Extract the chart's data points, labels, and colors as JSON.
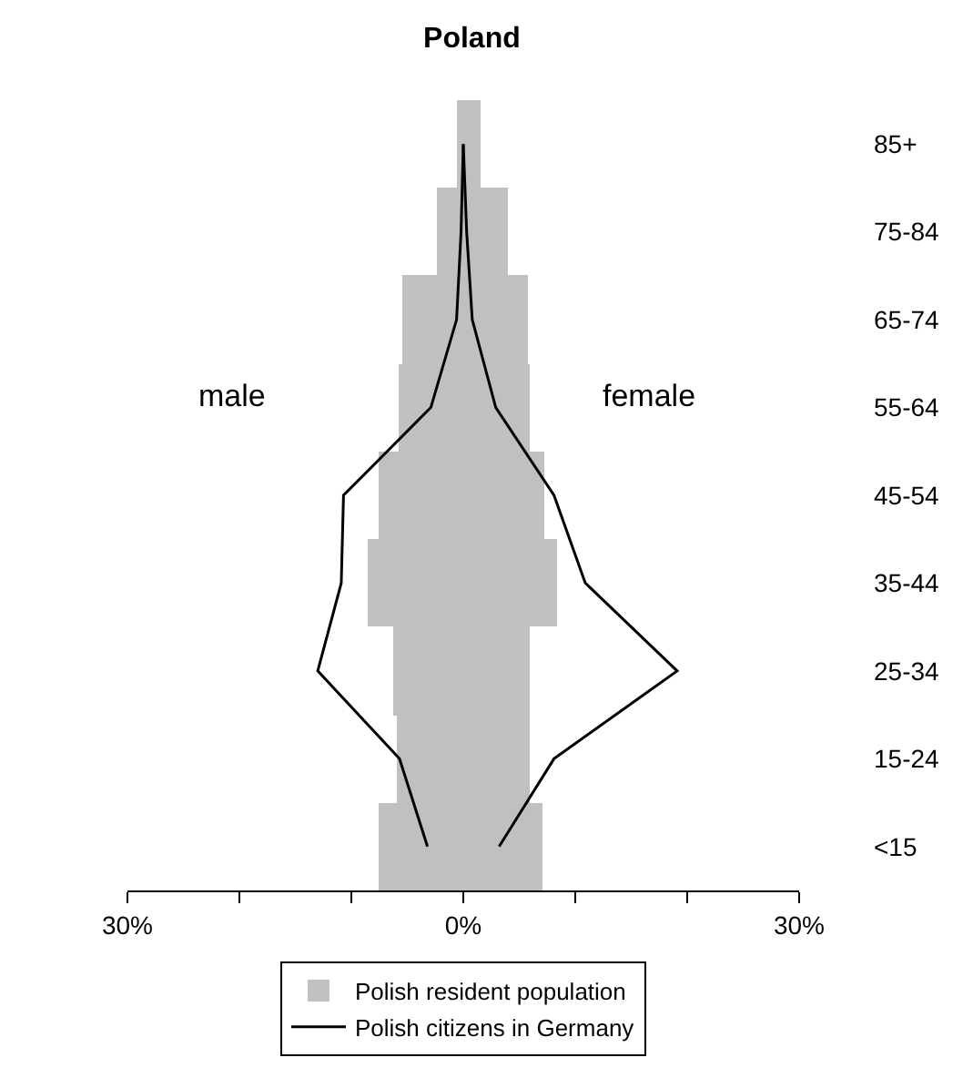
{
  "chart_data": {
    "type": "bar",
    "title": "Poland",
    "orientation": "horizontal",
    "stacked": true,
    "categories": [
      "85+",
      "75-84",
      "65-74",
      "55-64",
      "45-54",
      "35-44",
      "25-34",
      "15-24",
      "<15"
    ],
    "series": [
      {
        "name": "Polish resident population",
        "color": "#c0c0c0",
        "values": [
          -0.5,
          -2.3,
          -5.4,
          -5.7,
          -7.5,
          -8.6,
          -6.2,
          -6.0,
          -7.5
        ]
      },
      {
        "color": "#c0c0c0",
        "values": [
          1.5,
          4.0,
          5.8,
          6.0,
          7.3,
          8.4,
          6.0,
          6.0,
          7.0
        ]
      },
      {
        "name": "Polish citizens in Germany",
        "type": "line",
        "color": "#000000",
        "values": [
          0,
          -0.2,
          -0.6,
          -2.9,
          -10.7,
          -10.9,
          -13.0,
          -5.7,
          -3.2
        ]
      },
      {
        "type": "line",
        "color": "#000000",
        "values": [
          0,
          0.3,
          0.8,
          2.9,
          8.1,
          10.9,
          19.1,
          8.1,
          3.2
        ]
      }
    ],
    "xlim": [
      -30,
      30
    ],
    "xticks": [
      {
        "value": -30,
        "label": "30%"
      },
      {
        "value": -20,
        "label": null
      },
      {
        "value": -10,
        "label": null
      },
      {
        "value": 0,
        "label": "0%"
      },
      {
        "value": 10,
        "label": null
      },
      {
        "value": 20,
        "label": null
      },
      {
        "value": 30,
        "label": "30%"
      }
    ],
    "annotations": [
      "male",
      "female"
    ],
    "legend": "bottom",
    "grid": false,
    "marker": "none",
    "line_style": "solid"
  }
}
